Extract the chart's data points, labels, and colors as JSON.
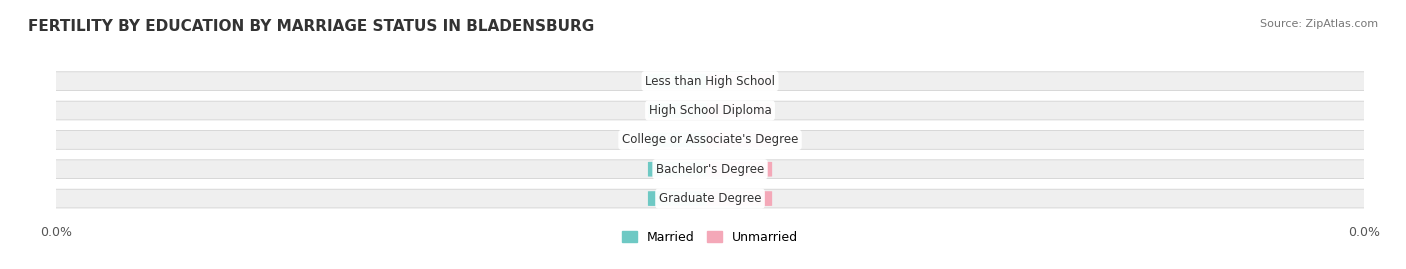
{
  "title": "FERTILITY BY EDUCATION BY MARRIAGE STATUS IN BLADENSBURG",
  "source": "Source: ZipAtlas.com",
  "categories": [
    "Less than High School",
    "High School Diploma",
    "College or Associate's Degree",
    "Bachelor's Degree",
    "Graduate Degree"
  ],
  "married_values": [
    0.0,
    0.0,
    0.0,
    0.0,
    0.0
  ],
  "unmarried_values": [
    0.0,
    0.0,
    0.0,
    0.0,
    0.0
  ],
  "married_color": "#6EC9C4",
  "unmarried_color": "#F4A8B8",
  "bar_bg_color": "#EFEFEF",
  "bar_height": 0.6,
  "title_fontsize": 11,
  "label_fontsize": 9,
  "tick_fontsize": 9,
  "source_fontsize": 8,
  "background_color": "#FFFFFF",
  "legend_married": "Married",
  "legend_unmarried": "Unmarried",
  "x_tick_label_left": "0.0%",
  "x_tick_label_right": "0.0%"
}
